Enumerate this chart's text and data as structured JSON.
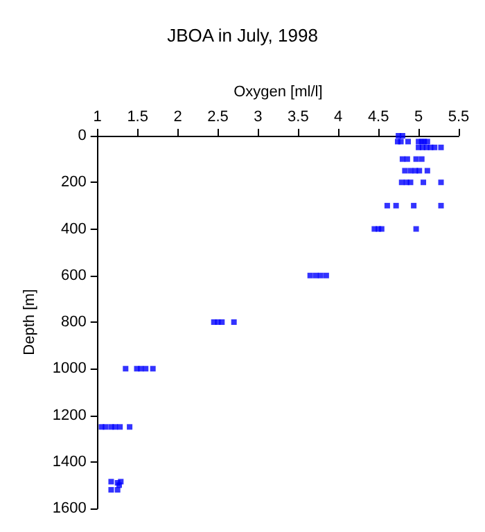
{
  "chart_data": {
    "type": "scatter",
    "title": "JBOA in July, 1998",
    "xlabel": "Oxygen [ml/l]",
    "ylabel": "Depth [m]",
    "x": [
      4.75,
      4.8,
      4.74,
      4.78,
      4.87,
      5.0,
      5.04,
      5.07,
      5.11,
      5.0,
      5.05,
      5.1,
      5.15,
      5.2,
      5.28,
      4.8,
      4.86,
      4.97,
      5.04,
      4.83,
      4.9,
      4.96,
      5.01,
      5.11,
      4.79,
      4.85,
      4.9,
      5.06,
      5.28,
      4.61,
      4.72,
      4.94,
      5.28,
      4.45,
      4.5,
      4.54,
      4.97,
      3.65,
      3.72,
      3.78,
      3.85,
      2.45,
      2.5,
      2.55,
      2.7,
      1.35,
      1.49,
      1.54,
      1.6,
      1.69,
      1.05,
      1.1,
      1.17,
      1.22,
      1.28,
      1.4,
      1.17,
      1.25,
      1.27,
      1.29,
      1.17,
      1.25
    ],
    "values": [
      0,
      0,
      25,
      25,
      25,
      25,
      25,
      25,
      25,
      50,
      50,
      50,
      50,
      50,
      50,
      100,
      100,
      100,
      100,
      150,
      150,
      150,
      150,
      150,
      200,
      200,
      200,
      200,
      200,
      300,
      300,
      300,
      300,
      400,
      400,
      400,
      400,
      600,
      600,
      600,
      600,
      800,
      800,
      800,
      800,
      1000,
      1000,
      1000,
      1000,
      1000,
      1250,
      1250,
      1250,
      1250,
      1250,
      1250,
      1485,
      1490,
      1500,
      1485,
      1520,
      1520
    ],
    "color": "#0000ff",
    "marker": "square",
    "grid": false,
    "xlim": [
      1,
      5.5
    ],
    "xticks": [
      1,
      1.5,
      2,
      2.5,
      3,
      3.5,
      4,
      4.5,
      5,
      5.5
    ],
    "ylim": [
      1600,
      0
    ],
    "yticks": [
      0,
      200,
      400,
      600,
      800,
      1000,
      1200,
      1400,
      1600
    ]
  }
}
